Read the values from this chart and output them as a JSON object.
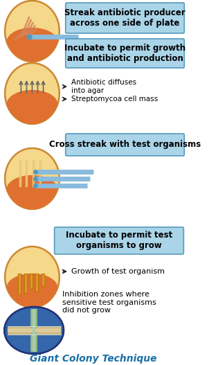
{
  "title": "Giant Colony Technique",
  "title_color": "#1a6fa8",
  "title_fontsize": 10,
  "bg_color": "#ffffff",
  "box_bg": "#aad4e8",
  "box_edge": "#5599bb",
  "box_texts": [
    "Streak antibiotic producer\nacross one side of plate",
    "Incubate to permit growth\nand antibiotic production",
    "Cross streak with test organisms",
    "Incubate to permit test\norganisms to grow"
  ],
  "oval_fill": "#f5d88a",
  "oval_edge": "#cc8833",
  "mound_fill": "#e07030",
  "arrow_color": "#222222",
  "bar_color": "#88bbdd",
  "dot_color": "#5599bb",
  "colony_color": "#dd9933",
  "upward_arrow_color": "#666666",
  "streak_color": "#d4935a",
  "photo_bg": "#3366aa"
}
